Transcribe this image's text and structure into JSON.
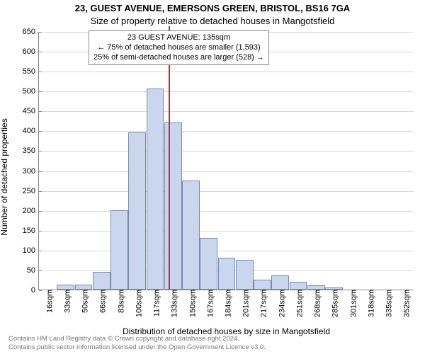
{
  "chart": {
    "type": "histogram",
    "title_main": "23, GUEST AVENUE, EMERSONS GREEN, BRISTOL, BS16 7GA",
    "title_sub": "Size of property relative to detached houses in Mangotsfield",
    "ylabel": "Number of detached properties",
    "xlabel": "Distribution of detached houses by size in Mangotsfield",
    "ylim": [
      0,
      650
    ],
    "ytick_step": 50,
    "bar_fill": "#c9d6ed",
    "bar_border": "#7a8aaf",
    "grid_color": "#d8d8d8",
    "background_color": "#ffffff",
    "reference_color": "#d22",
    "categories": [
      "16sqm",
      "33sqm",
      "50sqm",
      "66sqm",
      "83sqm",
      "100sqm",
      "117sqm",
      "133sqm",
      "150sqm",
      "167sqm",
      "184sqm",
      "201sqm",
      "217sqm",
      "234sqm",
      "251sqm",
      "268sqm",
      "285sqm",
      "301sqm",
      "318sqm",
      "335sqm",
      "352sqm"
    ],
    "values": [
      0,
      12,
      12,
      45,
      200,
      395,
      505,
      420,
      275,
      130,
      80,
      75,
      25,
      35,
      20,
      10,
      5,
      0,
      0,
      0,
      0
    ],
    "reference_value_sqm": 135,
    "x_range_sqm": [
      16,
      360
    ],
    "annotation": {
      "title": "23 GUEST AVENUE: 135sqm",
      "line1": "← 75% of detached houses are smaller (1,593)",
      "line2": "25% of semi-detached houses are larger (528) →"
    },
    "title_fontsize": 13,
    "label_fontsize": 12,
    "tick_fontsize": 11
  },
  "footer": {
    "line1": "Contains HM Land Registry data © Crown copyright and database right 2024.",
    "line2": "Contains public sector information licensed under the Open Government Licence v3.0."
  }
}
